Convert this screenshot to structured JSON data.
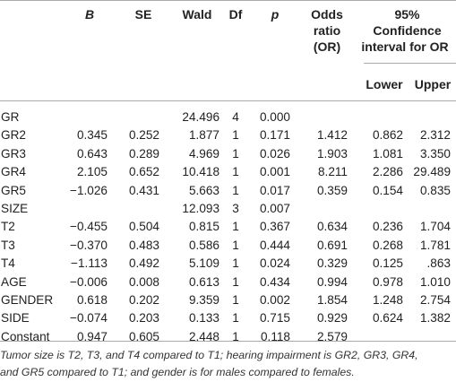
{
  "table": {
    "headers": {
      "b": "B",
      "se": "SE",
      "wald": "Wald",
      "df": "Df",
      "p": "p",
      "or_line1": "Odds",
      "or_line2": "ratio",
      "or_line3": "(OR)",
      "ci_line1": "95%",
      "ci_line2": "Confidence",
      "ci_line3": "interval for OR",
      "lower": "Lower",
      "upper": "Upper"
    },
    "rows": [
      {
        "label": "GR",
        "b": "",
        "se": "",
        "wald": "24.496",
        "df": "4",
        "p": "0.000",
        "or": "",
        "lower": "",
        "upper": ""
      },
      {
        "label": "GR2",
        "b": "0.345",
        "se": "0.252",
        "wald": "1.877",
        "df": "1",
        "p": "0.171",
        "or": "1.412",
        "lower": "0.862",
        "upper": "2.312"
      },
      {
        "label": "GR3",
        "b": "0.643",
        "se": "0.289",
        "wald": "4.969",
        "df": "1",
        "p": "0.026",
        "or": "1.903",
        "lower": "1.081",
        "upper": "3.350"
      },
      {
        "label": "GR4",
        "b": "2.105",
        "se": "0.652",
        "wald": "10.418",
        "df": "1",
        "p": "0.001",
        "or": "8.211",
        "lower": "2.286",
        "upper": "29.489"
      },
      {
        "label": "GR5",
        "b": "−1.026",
        "se": "0.431",
        "wald": "5.663",
        "df": "1",
        "p": "0.017",
        "or": "0.359",
        "lower": "0.154",
        "upper": "0.835"
      },
      {
        "label": "SIZE",
        "b": "",
        "se": "",
        "wald": "12.093",
        "df": "3",
        "p": "0.007",
        "or": "",
        "lower": "",
        "upper": ""
      },
      {
        "label": "T2",
        "b": "−0.455",
        "se": "0.504",
        "wald": "0.815",
        "df": "1",
        "p": "0.367",
        "or": "0.634",
        "lower": "0.236",
        "upper": "1.704"
      },
      {
        "label": "T3",
        "b": "−0.370",
        "se": "0.483",
        "wald": "0.586",
        "df": "1",
        "p": "0.444",
        "or": "0.691",
        "lower": "0.268",
        "upper": "1.781"
      },
      {
        "label": "T4",
        "b": "−1.113",
        "se": "0.492",
        "wald": "5.109",
        "df": "1",
        "p": "0.024",
        "or": "0.329",
        "lower": "0.125",
        "upper": ".863"
      },
      {
        "label": "AGE",
        "b": "−0.006",
        "se": "0.008",
        "wald": "0.613",
        "df": "1",
        "p": "0.434",
        "or": "0.994",
        "lower": "0.978",
        "upper": "1.010"
      },
      {
        "label": "GENDER",
        "b": "0.618",
        "se": "0.202",
        "wald": "9.359",
        "df": "1",
        "p": "0.002",
        "or": "1.854",
        "lower": "1.248",
        "upper": "2.754"
      },
      {
        "label": "SIDE",
        "b": "−0.074",
        "se": "0.203",
        "wald": "0.133",
        "df": "1",
        "p": "0.715",
        "or": "0.929",
        "lower": "0.624",
        "upper": "1.382"
      },
      {
        "label": "Constant",
        "b": "0.947",
        "se": "0.605",
        "wald": "2.448",
        "df": "1",
        "p": "0.118",
        "or": "2.579",
        "lower": "",
        "upper": ""
      }
    ]
  },
  "footnote": {
    "line1": "Tumor size is T2, T3, and T4 compared to T1; hearing impairment is GR2, GR3, GR4,",
    "line2": "and GR5 compared to T1; and gender is for males compared to females."
  }
}
